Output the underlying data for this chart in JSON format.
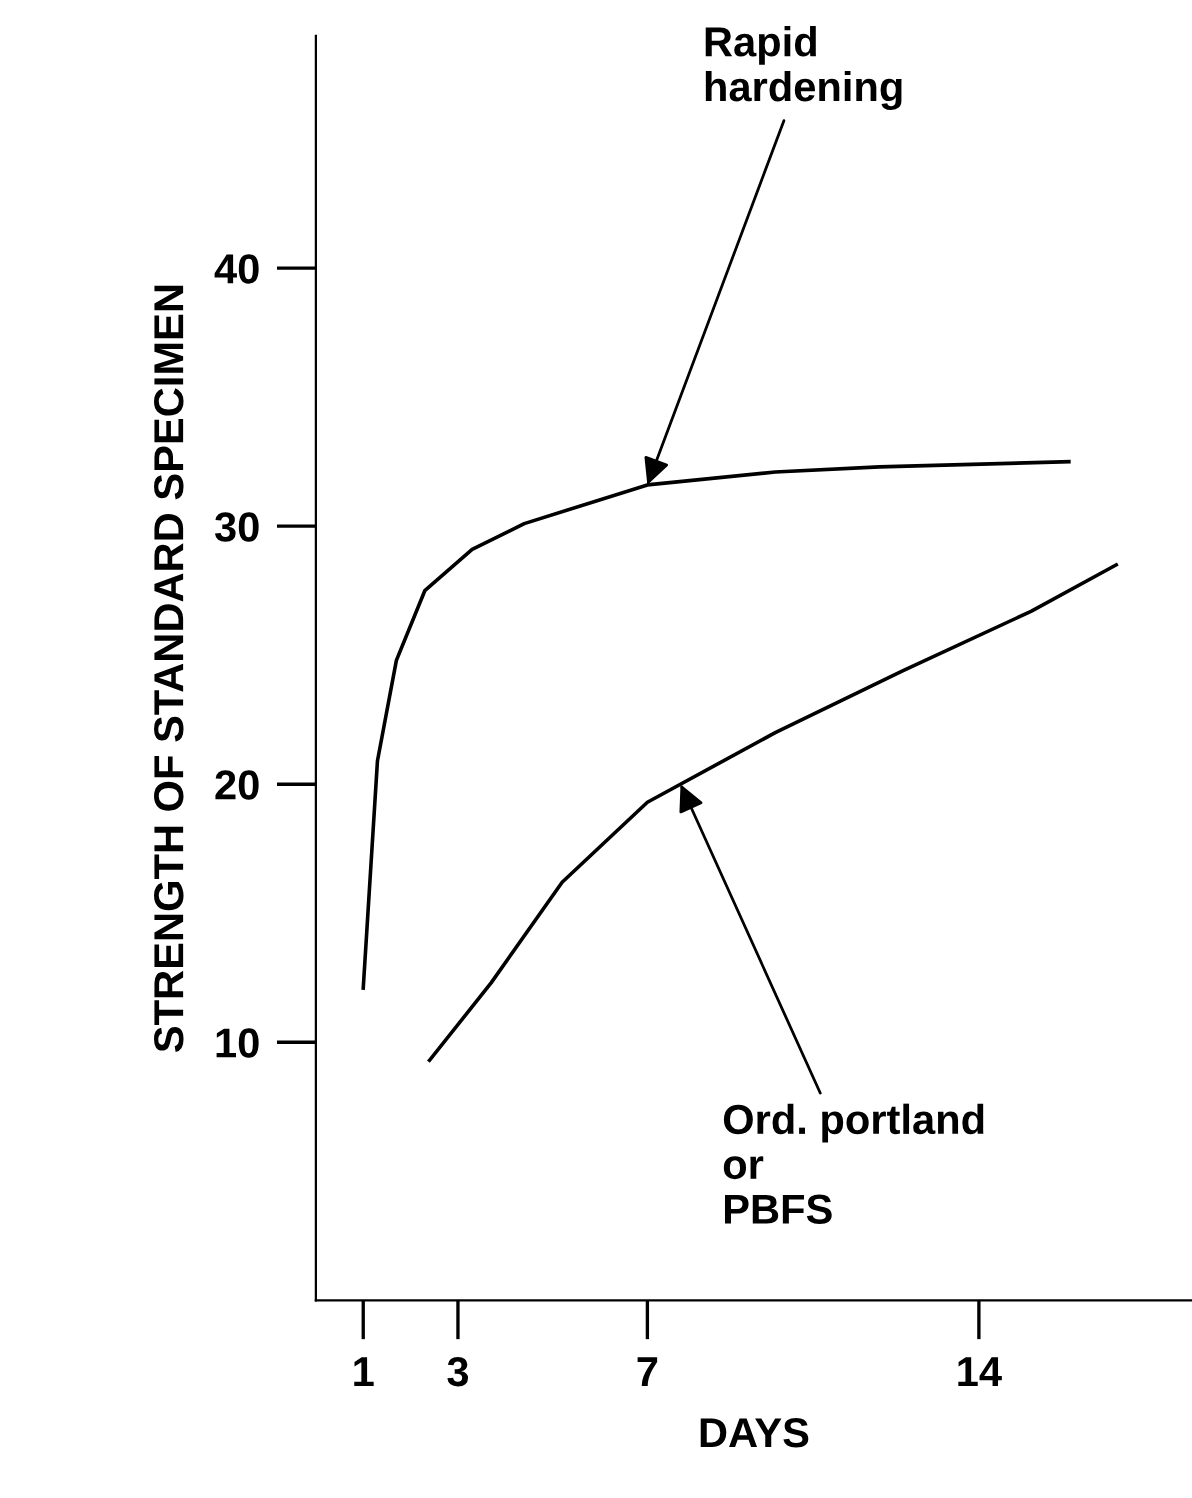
{
  "chart_data": {
    "type": "line",
    "xlabel": "DAYS",
    "ylabel": "STRENGTH OF STANDARD SPECIMEN",
    "xlim": [
      0,
      18.5
    ],
    "ylim": [
      0,
      49
    ],
    "xticks": [
      1,
      3,
      7,
      14
    ],
    "yticks": [
      10,
      20,
      30,
      40
    ],
    "grid": false,
    "legend": false,
    "marker": "none",
    "line_style": "solid",
    "series": [
      {
        "color": "#000000",
        "x": [
          1,
          1.3,
          1.7,
          2.3,
          3.3,
          4.4,
          7,
          9.7,
          11.9,
          15.9
        ],
        "values": [
          12.1,
          20.9,
          24.8,
          27.5,
          29.1,
          30.1,
          31.6,
          32.1,
          32.3,
          32.5
        ]
      },
      {
        "color": "#000000",
        "x": [
          2.4,
          3.7,
          5.2,
          7,
          9.7,
          12.4,
          15.1,
          16.9
        ],
        "values": [
          9.3,
          12.3,
          16.2,
          19.3,
          22.0,
          24.4,
          26.7,
          28.5
        ]
      }
    ],
    "annotations": [
      {
        "text": "Rapid\nhardening",
        "x": 7,
        "y": 31.6
      },
      {
        "text": "Ord. portland\nor\nPBFS",
        "x": 7.7,
        "y": 20.0
      }
    ]
  }
}
